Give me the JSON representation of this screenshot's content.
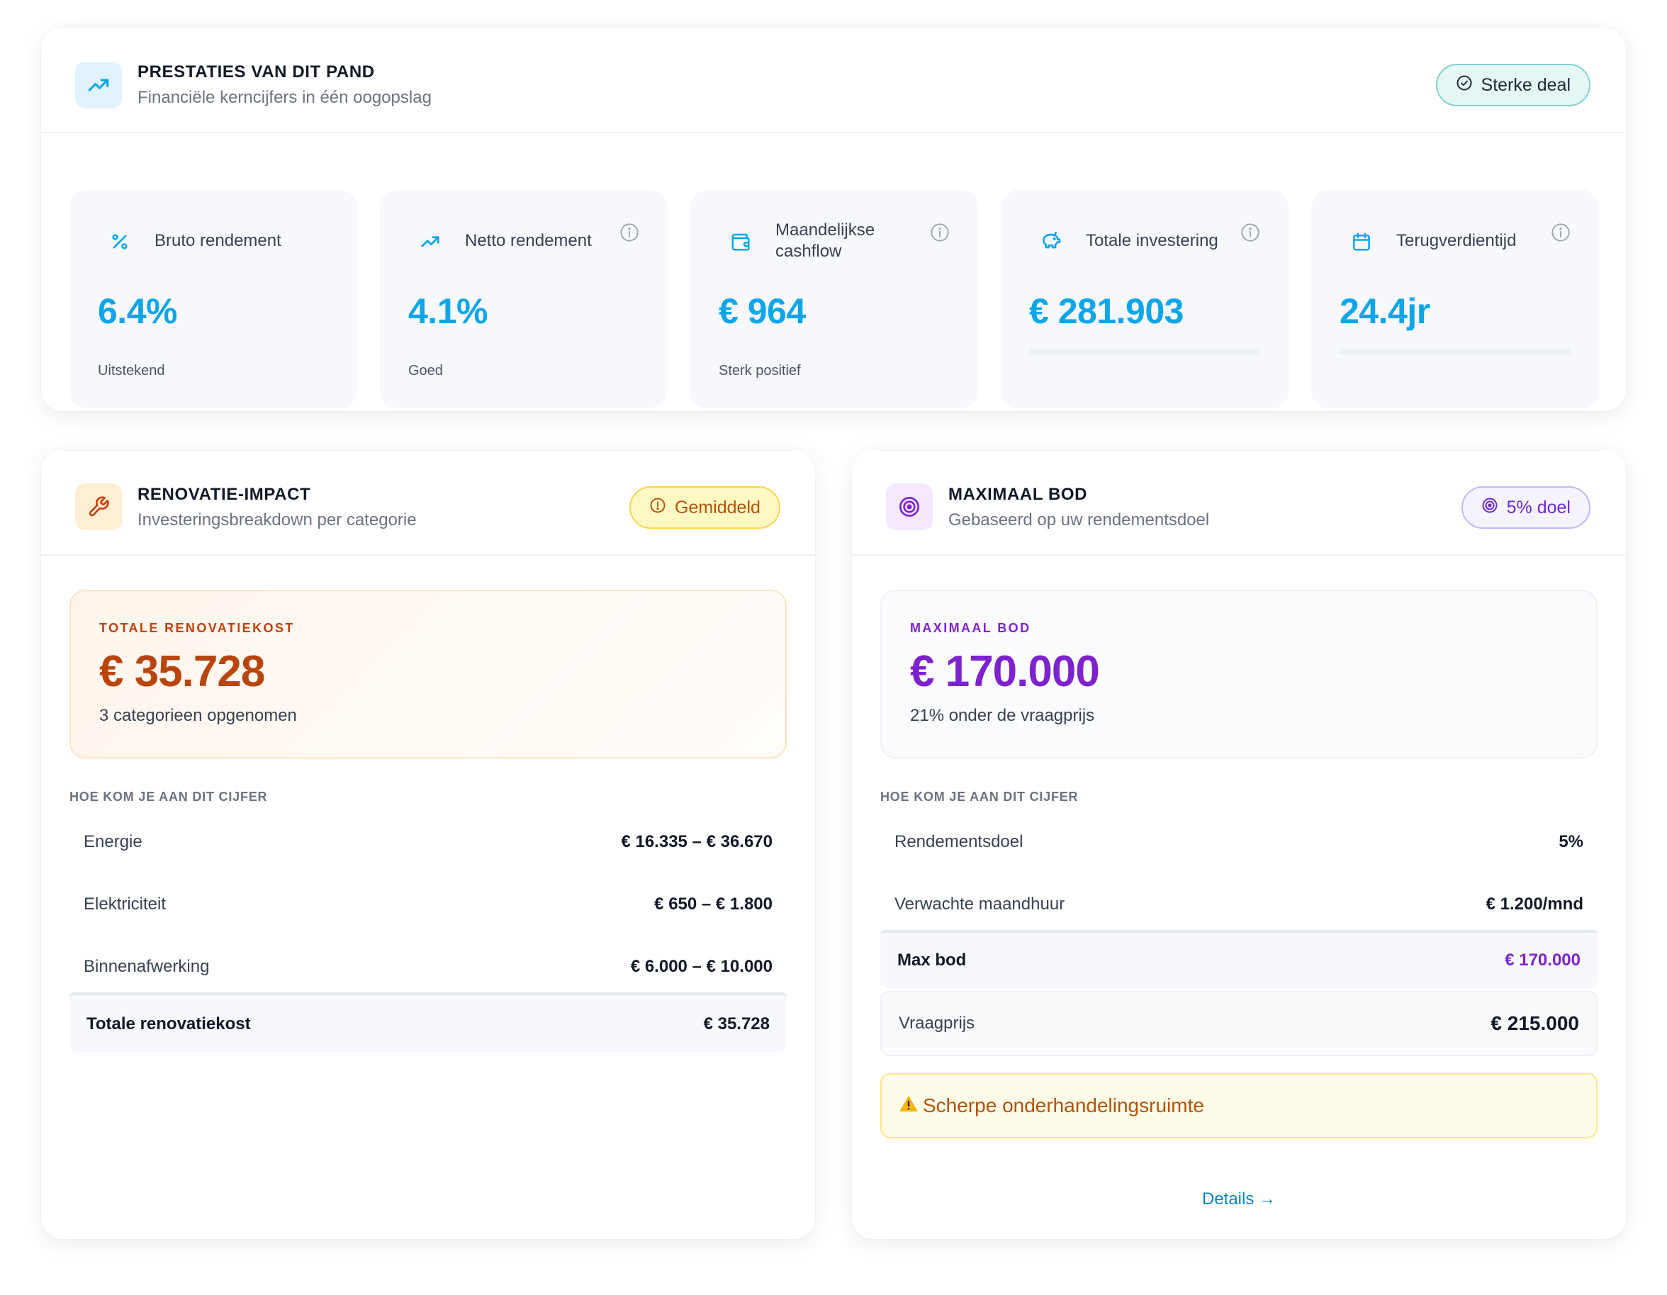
{
  "performance": {
    "title": "PRESTATIES VAN DIT PAND",
    "subtitle": "Financiële kerncijfers in één oogopslag",
    "badge": "Sterke deal",
    "metrics": [
      {
        "label": "Bruto rendement",
        "value": "6.4%",
        "caption": "Uitstekend",
        "icon": "percent-icon"
      },
      {
        "label": "Netto rendement",
        "value": "4.1%",
        "caption": "Goed",
        "icon": "trending-up-icon"
      },
      {
        "label": "Maandelijkse cashflow",
        "value": "€ 964",
        "caption": "Sterk positief",
        "icon": "wallet-icon"
      },
      {
        "label": "Totale investering",
        "value": "€ 281.903",
        "caption": "",
        "icon": "piggy-bank-icon"
      },
      {
        "label": "Terugverdientijd",
        "value": "24.4jr",
        "caption": "",
        "icon": "calendar-icon"
      }
    ]
  },
  "renovation": {
    "title": "RENOVATIE-IMPACT",
    "subtitle": "Investeringsbreakdown per categorie",
    "badge": "Gemiddeld",
    "total_label": "TOTALE RENOVATIEKOST",
    "total_value": "€ 35.728",
    "total_sub": "3 categorieen opgenomen",
    "section_label": "HOE KOM JE AAN DIT CIJFER",
    "rows": [
      {
        "label": "Energie",
        "value": "€ 16.335 – € 36.670"
      },
      {
        "label": "Elektriciteit",
        "value": "€ 650 – € 1.800"
      },
      {
        "label": "Binnenafwerking",
        "value": "€ 6.000 – € 10.000"
      }
    ],
    "total_row": {
      "label": "Totale renovatiekost",
      "value": "€ 35.728"
    }
  },
  "max_bid": {
    "title": "MAXIMAAL BOD",
    "subtitle": "Gebaseerd op uw rendementsdoel",
    "badge": "5% doel",
    "total_label": "MAXIMAAL BOD",
    "total_value": "€ 170.000",
    "total_sub": "21% onder de vraagprijs",
    "section_label": "HOE KOM JE AAN DIT CIJFER",
    "rows": [
      {
        "label": "Rendementsdoel",
        "value": "5%"
      },
      {
        "label": "Verwachte maandhuur",
        "value": "€ 1.200/mnd"
      }
    ],
    "max_row": {
      "label": "Max bod",
      "value": "€ 170.000"
    },
    "ask_row": {
      "label": "Vraagprijs",
      "value": "€ 215.000"
    },
    "warning": "Scherpe onderhandelingsruimte",
    "details_link": "Details →"
  },
  "colors": {
    "accent_blue": "#0ea5e9",
    "renovation_orange": "#b8450e",
    "bid_purple": "#7e22ce",
    "success_teal": "#7cc4c9",
    "warning_yellow": "#fde68a"
  }
}
